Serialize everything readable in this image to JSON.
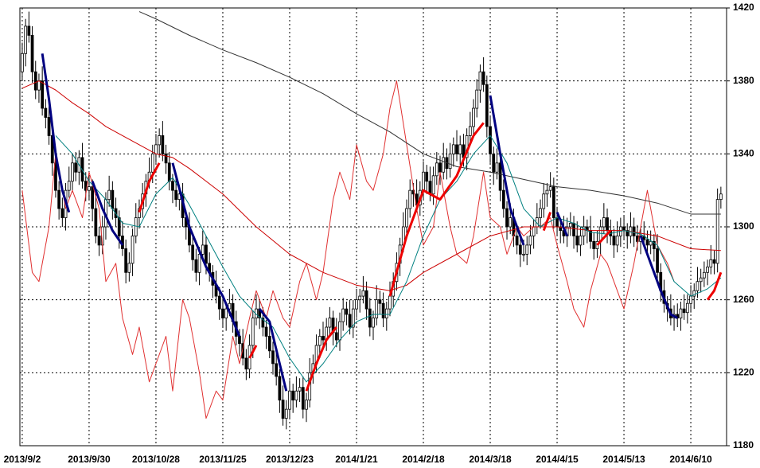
{
  "chart_data": {
    "type": "candlestick",
    "xlim": [
      -0.7,
      210.7
    ],
    "ylim": [
      1180,
      1420
    ],
    "grid": true,
    "xticks": [
      {
        "value": 0,
        "label": "2013/9/2"
      },
      {
        "value": 20,
        "label": "2013/9/30"
      },
      {
        "value": 40,
        "label": "2013/10/28"
      },
      {
        "value": 60,
        "label": "2013/11/25"
      },
      {
        "value": 80,
        "label": "2013/12/23"
      },
      {
        "value": 100,
        "label": "2014/1/21"
      },
      {
        "value": 120,
        "label": "2014/2/18"
      },
      {
        "value": 140,
        "label": "2014/3/18"
      },
      {
        "value": 160,
        "label": "2014/4/15"
      },
      {
        "value": 180,
        "label": "2014/5/13"
      },
      {
        "value": 200,
        "label": "2014/6/10"
      }
    ],
    "yticks": [
      1180,
      1220,
      1260,
      1300,
      1340,
      1380,
      1420
    ],
    "up_color": "#ffffff",
    "down_color": "#000000",
    "open": [
      1385,
      1395,
      1410,
      1405,
      1385,
      1375,
      1380,
      1365,
      1360,
      1350,
      1335,
      1320,
      1310,
      1305,
      1320,
      1325,
      1335,
      1330,
      1338,
      1325,
      1320,
      1322,
      1310,
      1295,
      1290,
      1300,
      1315,
      1320,
      1310,
      1305,
      1295,
      1288,
      1275,
      1280,
      1295,
      1305,
      1310,
      1318,
      1325,
      1330,
      1340,
      1345,
      1350,
      1340,
      1335,
      1325,
      1320,
      1315,
      1318,
      1305,
      1300,
      1290,
      1282,
      1275,
      1285,
      1290,
      1280,
      1275,
      1268,
      1262,
      1255,
      1250,
      1255,
      1258,
      1248,
      1240,
      1236,
      1228,
      1222,
      1235,
      1250,
      1255,
      1250,
      1245,
      1240,
      1232,
      1225,
      1218,
      1205,
      1195,
      1200,
      1210,
      1205,
      1210,
      1212,
      1200,
      1205,
      1220,
      1225,
      1235,
      1240,
      1238,
      1245,
      1250,
      1242,
      1238,
      1248,
      1255,
      1252,
      1245,
      1255,
      1260,
      1262,
      1265,
      1255,
      1245,
      1250,
      1260,
      1258,
      1250,
      1255,
      1262,
      1270,
      1280,
      1290,
      1300,
      1310,
      1320,
      1318,
      1312,
      1320,
      1330,
      1325,
      1318,
      1328,
      1335,
      1330,
      1338,
      1332,
      1340,
      1345,
      1340,
      1345,
      1338,
      1350,
      1355,
      1365,
      1375,
      1385,
      1378,
      1355,
      1340,
      1330,
      1335,
      1320,
      1310,
      1300,
      1305,
      1295,
      1290,
      1285,
      1285,
      1290,
      1295,
      1300,
      1305,
      1310,
      1318,
      1320,
      1322,
      1305,
      1300,
      1298,
      1295,
      1300,
      1302,
      1295,
      1290,
      1295,
      1300,
      1298,
      1292,
      1288,
      1292,
      1300,
      1305,
      1298,
      1295,
      1290,
      1295,
      1300,
      1298,
      1295,
      1300,
      1295,
      1292,
      1295,
      1293,
      1290,
      1292,
      1288,
      1275,
      1265,
      1258,
      1255,
      1250,
      1252,
      1250,
      1255,
      1253,
      1258,
      1262,
      1265,
      1270,
      1272,
      1275,
      1278,
      1282,
      1280,
      1315
    ],
    "high": [
      1401,
      1414,
      1418,
      1410,
      1391,
      1384,
      1388,
      1370,
      1366,
      1354,
      1343,
      1325,
      1316,
      1324,
      1333,
      1340,
      1341,
      1342,
      1346,
      1330,
      1328,
      1326,
      1318,
      1300,
      1306,
      1319,
      1328,
      1325,
      1316,
      1309,
      1303,
      1293,
      1286,
      1299,
      1313,
      1315,
      1324,
      1329,
      1338,
      1345,
      1351,
      1354,
      1358,
      1345,
      1341,
      1329,
      1328,
      1323,
      1324,
      1309,
      1308,
      1295,
      1288,
      1289,
      1298,
      1295,
      1286,
      1279,
      1276,
      1267,
      1261,
      1259,
      1266,
      1263,
      1254,
      1244,
      1244,
      1233,
      1241,
      1254,
      1263,
      1260,
      1256,
      1249,
      1248,
      1237,
      1231,
      1222,
      1213,
      1205,
      1216,
      1214,
      1218,
      1217,
      1218,
      1209,
      1228,
      1230,
      1241,
      1244,
      1248,
      1250,
      1256,
      1254,
      1250,
      1253,
      1261,
      1259,
      1260,
      1260,
      1266,
      1266,
      1273,
      1270,
      1261,
      1254,
      1268,
      1265,
      1264,
      1259,
      1270,
      1275,
      1286,
      1294,
      1308,
      1315,
      1326,
      1324,
      1326,
      1325,
      1336,
      1334,
      1333,
      1333,
      1341,
      1339,
      1346,
      1343,
      1346,
      1349,
      1353,
      1350,
      1351,
      1354,
      1363,
      1370,
      1381,
      1389,
      1393,
      1383,
      1361,
      1344,
      1343,
      1340,
      1326,
      1314,
      1313,
      1310,
      1301,
      1294,
      1293,
      1295,
      1301,
      1304,
      1313,
      1315,
      1324,
      1324,
      1330,
      1327,
      1311,
      1304,
      1306,
      1305,
      1308,
      1306,
      1303,
      1300,
      1306,
      1304,
      1306,
      1297,
      1298,
      1304,
      1313,
      1310,
      1304,
      1299,
      1303,
      1305,
      1306,
      1302,
      1308,
      1305,
      1301,
      1299,
      1303,
      1298,
      1298,
      1296,
      1296,
      1280,
      1271,
      1262,
      1263,
      1257,
      1258,
      1259,
      1263,
      1263,
      1268,
      1269,
      1278,
      1277,
      1281,
      1282,
      1290,
      1287,
      1321,
      1322
    ],
    "low": [
      1380,
      1388,
      1401,
      1379,
      1370,
      1368,
      1361,
      1354,
      1345,
      1328,
      1316,
      1304,
      1300,
      1298,
      1316,
      1319,
      1325,
      1323,
      1321,
      1314,
      1315,
      1303,
      1291,
      1284,
      1285,
      1293,
      1311,
      1304,
      1300,
      1288,
      1284,
      1269,
      1270,
      1273,
      1291,
      1299,
      1305,
      1311,
      1321,
      1324,
      1335,
      1338,
      1336,
      1329,
      1320,
      1313,
      1311,
      1309,
      1300,
      1293,
      1286,
      1276,
      1270,
      1268,
      1281,
      1274,
      1270,
      1261,
      1258,
      1249,
      1245,
      1243,
      1251,
      1242,
      1235,
      1229,
      1224,
      1216,
      1217,
      1228,
      1246,
      1244,
      1240,
      1233,
      1228,
      1219,
      1213,
      1198,
      1191,
      1189,
      1195,
      1198,
      1201,
      1204,
      1195,
      1193,
      1201,
      1214,
      1220,
      1228,
      1234,
      1232,
      1240,
      1235,
      1234,
      1232,
      1243,
      1246,
      1241,
      1239,
      1250,
      1253,
      1258,
      1249,
      1240,
      1238,
      1246,
      1252,
      1245,
      1243,
      1251,
      1256,
      1265,
      1273,
      1286,
      1294,
      1305,
      1311,
      1308,
      1306,
      1315,
      1318,
      1314,
      1312,
      1323,
      1323,
      1326,
      1326,
      1327,
      1333,
      1336,
      1334,
      1333,
      1331,
      1346,
      1349,
      1360,
      1368,
      1374,
      1349,
      1335,
      1323,
      1326,
      1314,
      1305,
      1293,
      1296,
      1289,
      1285,
      1278,
      1281,
      1279,
      1285,
      1288,
      1296,
      1299,
      1305,
      1311,
      1316,
      1299,
      1295,
      1291,
      1291,
      1289,
      1295,
      1288,
      1286,
      1284,
      1290,
      1291,
      1288,
      1282,
      1283,
      1285,
      1296,
      1291,
      1290,
      1283,
      1286,
      1289,
      1293,
      1288,
      1291,
      1289,
      1287,
      1285,
      1289,
      1284,
      1285,
      1281,
      1271,
      1259,
      1253,
      1248,
      1246,
      1243,
      1245,
      1243,
      1249,
      1247,
      1253,
      1255,
      1261,
      1264,
      1267,
      1268,
      1274,
      1274,
      1275,
      1310
    ],
    "close": [
      1395,
      1410,
      1405,
      1385,
      1375,
      1380,
      1365,
      1360,
      1350,
      1335,
      1320,
      1310,
      1305,
      1320,
      1325,
      1335,
      1330,
      1338,
      1325,
      1320,
      1322,
      1310,
      1295,
      1290,
      1300,
      1315,
      1320,
      1310,
      1305,
      1295,
      1288,
      1275,
      1280,
      1295,
      1305,
      1310,
      1318,
      1325,
      1330,
      1340,
      1345,
      1350,
      1340,
      1335,
      1325,
      1320,
      1315,
      1318,
      1305,
      1300,
      1290,
      1282,
      1275,
      1285,
      1290,
      1280,
      1275,
      1268,
      1262,
      1255,
      1250,
      1255,
      1258,
      1248,
      1240,
      1236,
      1228,
      1222,
      1235,
      1250,
      1255,
      1250,
      1245,
      1240,
      1232,
      1225,
      1218,
      1205,
      1195,
      1200,
      1210,
      1205,
      1210,
      1212,
      1200,
      1205,
      1220,
      1225,
      1235,
      1240,
      1238,
      1245,
      1250,
      1242,
      1238,
      1248,
      1255,
      1252,
      1245,
      1255,
      1260,
      1262,
      1265,
      1255,
      1245,
      1250,
      1260,
      1258,
      1250,
      1255,
      1262,
      1270,
      1280,
      1290,
      1300,
      1310,
      1320,
      1318,
      1312,
      1320,
      1330,
      1325,
      1318,
      1328,
      1335,
      1330,
      1338,
      1332,
      1340,
      1345,
      1340,
      1345,
      1338,
      1350,
      1355,
      1365,
      1375,
      1385,
      1378,
      1355,
      1340,
      1330,
      1335,
      1320,
      1310,
      1300,
      1305,
      1295,
      1290,
      1285,
      1285,
      1290,
      1295,
      1300,
      1305,
      1310,
      1318,
      1320,
      1322,
      1305,
      1300,
      1298,
      1295,
      1300,
      1302,
      1295,
      1290,
      1295,
      1300,
      1298,
      1292,
      1288,
      1292,
      1300,
      1305,
      1298,
      1295,
      1290,
      1295,
      1300,
      1298,
      1295,
      1300,
      1295,
      1292,
      1295,
      1293,
      1290,
      1292,
      1288,
      1275,
      1265,
      1258,
      1255,
      1250,
      1252,
      1250,
      1255,
      1253,
      1258,
      1262,
      1265,
      1270,
      1272,
      1275,
      1278,
      1282,
      1280,
      1315,
      1318
    ],
    "lines": [
      {
        "color": "#e03030",
        "x": [
          0,
          3,
          5,
          8,
          10,
          13,
          15,
          18,
          20,
          23,
          25,
          28,
          30,
          33,
          35,
          38,
          40,
          43,
          45,
          48,
          50,
          53,
          55,
          58,
          60,
          63,
          65,
          68,
          70,
          73,
          75,
          78,
          80,
          83,
          85,
          88,
          90,
          93,
          95,
          98,
          100,
          103,
          105,
          108,
          110,
          112,
          115,
          118,
          120,
          123,
          125,
          128,
          130,
          133,
          135,
          138,
          140,
          143,
          145,
          148,
          150,
          153,
          155,
          158,
          160,
          163,
          165,
          168,
          170,
          173,
          175,
          178,
          180,
          183,
          185,
          187,
          190,
          193,
          195
        ],
        "values": [
          1320,
          1275,
          1270,
          1300,
          1340,
          1310,
          1320,
          1305,
          1330,
          1310,
          1270,
          1280,
          1250,
          1230,
          1245,
          1215,
          1225,
          1240,
          1210,
          1260,
          1250,
          1220,
          1195,
          1210,
          1205,
          1240,
          1225,
          1250,
          1265,
          1250,
          1265,
          1250,
          1245,
          1270,
          1280,
          1260,
          1275,
          1315,
          1330,
          1315,
          1345,
          1325,
          1320,
          1340,
          1365,
          1380,
          1345,
          1310,
          1290,
          1300,
          1330,
          1300,
          1285,
          1280,
          1295,
          1330,
          1305,
          1300,
          1285,
          1300,
          1295,
          1300,
          1300,
          1305,
          1290,
          1270,
          1255,
          1245,
          1265,
          1285,
          1280,
          1265,
          1255,
          1280,
          1300,
          1320,
          1290,
          1280,
          1270
        ]
      },
      {
        "color": "#333333",
        "x": [
          35,
          40,
          50,
          60,
          70,
          80,
          90,
          100,
          110,
          120,
          130,
          140,
          150,
          160,
          170,
          180,
          190,
          200,
          209
        ],
        "values": [
          1418,
          1414,
          1405,
          1397,
          1390,
          1382,
          1373,
          1362,
          1352,
          1340,
          1333,
          1330,
          1326,
          1322,
          1320,
          1317,
          1313,
          1307,
          1307
        ]
      },
      {
        "color": "#cc0000",
        "x": [
          0,
          5,
          10,
          15,
          20,
          25,
          30,
          40,
          45,
          50,
          60,
          70,
          80,
          90,
          100,
          110,
          115,
          120,
          130,
          140,
          150,
          160,
          170,
          180,
          190,
          200,
          209
        ],
        "values": [
          1376,
          1380,
          1375,
          1368,
          1362,
          1355,
          1350,
          1340,
          1338,
          1332,
          1318,
          1300,
          1285,
          1275,
          1268,
          1265,
          1268,
          1275,
          1285,
          1295,
          1300,
          1300,
          1298,
          1298,
          1295,
          1288,
          1287
        ]
      },
      {
        "color": "#008080",
        "x": [
          10,
          15,
          20,
          25,
          30,
          35,
          40,
          45,
          50,
          55,
          60,
          65,
          70,
          75,
          80,
          85,
          90,
          95,
          100,
          105,
          110,
          115,
          120,
          125,
          130,
          135,
          140,
          145,
          150,
          155,
          160,
          165,
          170,
          175,
          180,
          185,
          190,
          195,
          200,
          205,
          209
        ],
        "values": [
          1350,
          1340,
          1325,
          1315,
          1302,
          1300,
          1318,
          1327,
          1312,
          1295,
          1278,
          1262,
          1252,
          1245,
          1228,
          1215,
          1225,
          1238,
          1248,
          1252,
          1252,
          1270,
          1295,
          1315,
          1325,
          1340,
          1350,
          1335,
          1310,
          1300,
          1305,
          1302,
          1297,
          1296,
          1298,
          1296,
          1290,
          1270,
          1262,
          1266,
          1272
        ]
      },
      {
        "color": "#000080",
        "x": [
          6,
          8,
          10,
          12,
          14,
          15,
          21,
          24,
          27,
          30,
          31,
          45,
          50,
          55,
          60,
          65,
          66,
          71,
          74,
          77,
          79,
          80,
          140,
          143,
          146,
          150,
          151,
          160,
          163,
          164,
          185,
          188,
          191,
          194,
          196
        ],
        "values": [
          1395,
          1370,
          1340,
          1320,
          1308,
          null,
          1325,
          1310,
          1298,
          1290,
          null,
          1335,
          1300,
          1278,
          1262,
          1240,
          null,
          1255,
          1248,
          1225,
          1210,
          null,
          1372,
          1340,
          1310,
          1290,
          null,
          1308,
          1295,
          null,
          1295,
          1280,
          1265,
          1252,
          1250
        ]
      },
      {
        "color": "#ee0000",
        "x": [
          35,
          38,
          41,
          42,
          68,
          70,
          71,
          85,
          88,
          91,
          94,
          95,
          110,
          115,
          120,
          125,
          130,
          135,
          138,
          139,
          156,
          158,
          159,
          172,
          176,
          177,
          205,
          207,
          209
        ],
        "values": [
          1308,
          1325,
          1335,
          null,
          1228,
          1235,
          null,
          1210,
          1225,
          1238,
          1245,
          null,
          1262,
          1295,
          1320,
          1315,
          1328,
          1350,
          1357,
          null,
          1298,
          1308,
          null,
          1290,
          1298,
          null,
          1260,
          1265,
          1275
        ]
      }
    ]
  }
}
